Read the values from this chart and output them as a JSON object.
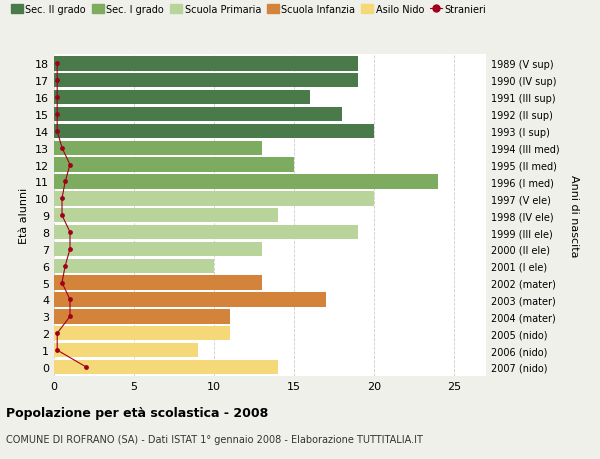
{
  "ages": [
    18,
    17,
    16,
    15,
    14,
    13,
    12,
    11,
    10,
    9,
    8,
    7,
    6,
    5,
    4,
    3,
    2,
    1,
    0
  ],
  "right_labels": [
    "1989 (V sup)",
    "1990 (IV sup)",
    "1991 (III sup)",
    "1992 (II sup)",
    "1993 (I sup)",
    "1994 (III med)",
    "1995 (II med)",
    "1996 (I med)",
    "1997 (V ele)",
    "1998 (IV ele)",
    "1999 (III ele)",
    "2000 (II ele)",
    "2001 (I ele)",
    "2002 (mater)",
    "2003 (mater)",
    "2004 (mater)",
    "2005 (nido)",
    "2006 (nido)",
    "2007 (nido)"
  ],
  "bar_values": [
    19,
    19,
    16,
    18,
    20,
    13,
    15,
    24,
    20,
    14,
    19,
    13,
    10,
    13,
    17,
    11,
    11,
    9,
    14
  ],
  "bar_colors": [
    "#4a7a4a",
    "#4a7a4a",
    "#4a7a4a",
    "#4a7a4a",
    "#4a7a4a",
    "#7dab60",
    "#7dab60",
    "#7dab60",
    "#b8d49a",
    "#b8d49a",
    "#b8d49a",
    "#b8d49a",
    "#b8d49a",
    "#d4843a",
    "#d4843a",
    "#d4843a",
    "#f5d878",
    "#f5d878",
    "#f5d878"
  ],
  "stranieri_values": [
    0.2,
    0.2,
    0.2,
    0.2,
    0.2,
    0.5,
    1.0,
    0.7,
    0.5,
    0.5,
    1.0,
    1.0,
    0.7,
    0.5,
    1.0,
    1.0,
    0.2,
    0.2,
    2.0
  ],
  "xlim": [
    0,
    27
  ],
  "xticks": [
    0,
    5,
    10,
    15,
    20,
    25
  ],
  "ylabel": "Età alunni",
  "right_ylabel": "Anni di nascita",
  "legend_entries": [
    {
      "label": "Sec. II grado",
      "color": "#4a7a4a"
    },
    {
      "label": "Sec. I grado",
      "color": "#7dab60"
    },
    {
      "label": "Scuola Primaria",
      "color": "#b8d49a"
    },
    {
      "label": "Scuola Infanzia",
      "color": "#d4843a"
    },
    {
      "label": "Asilo Nido",
      "color": "#f5d878"
    },
    {
      "label": "Stranieri",
      "color": "#a0001a"
    }
  ],
  "title": "Popolazione per età scolastica - 2008",
  "subtitle": "COMUNE DI ROFRANO (SA) - Dati ISTAT 1° gennaio 2008 - Elaborazione TUTTITALIA.IT",
  "background_color": "#f0f0eb",
  "bar_background": "#ffffff",
  "grid_color": "#cccccc"
}
